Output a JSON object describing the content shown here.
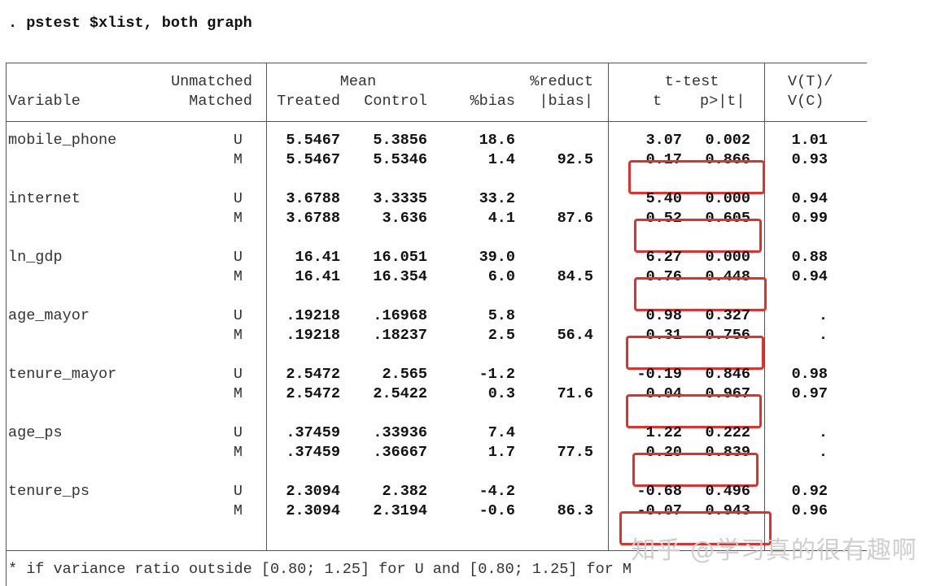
{
  "command": ". pstest $xlist, both graph",
  "header": {
    "unmatched": "Unmatched",
    "matched": "Matched",
    "variable": "Variable",
    "mean": "Mean",
    "treated": "Treated",
    "control": "Control",
    "bias": "%bias",
    "reduct1": "%reduct",
    "reduct2": "|bias|",
    "ttest": "t-test",
    "t": "t",
    "p": "p>|t|",
    "vt": "V(T)/",
    "vc": "V(C)"
  },
  "rows": [
    {
      "variable": "mobile_phone",
      "U": {
        "flag": "U",
        "treated": "5.5467",
        "control": "5.3856",
        "bias": "18.6",
        "reduct": "",
        "t": "3.07",
        "p": "0.002",
        "vr": "1.01"
      },
      "M": {
        "flag": "M",
        "treated": "5.5467",
        "control": "5.5346",
        "bias": "1.4",
        "reduct": "92.5",
        "t": "0.17",
        "p": "0.866",
        "vr": "0.93"
      }
    },
    {
      "variable": "internet",
      "U": {
        "flag": "U",
        "treated": "3.6788",
        "control": "3.3335",
        "bias": "33.2",
        "reduct": "",
        "t": "5.40",
        "p": "0.000",
        "vr": "0.94"
      },
      "M": {
        "flag": "M",
        "treated": "3.6788",
        "control": "3.636",
        "bias": "4.1",
        "reduct": "87.6",
        "t": "0.52",
        "p": "0.605",
        "vr": "0.99"
      }
    },
    {
      "variable": "ln_gdp",
      "U": {
        "flag": "U",
        "treated": "16.41",
        "control": "16.051",
        "bias": "39.0",
        "reduct": "",
        "t": "6.27",
        "p": "0.000",
        "vr": "0.88"
      },
      "M": {
        "flag": "M",
        "treated": "16.41",
        "control": "16.354",
        "bias": "6.0",
        "reduct": "84.5",
        "t": "0.76",
        "p": "0.448",
        "vr": "0.94"
      }
    },
    {
      "variable": "age_mayor",
      "U": {
        "flag": "U",
        "treated": ".19218",
        "control": ".16968",
        "bias": "5.8",
        "reduct": "",
        "t": "0.98",
        "p": "0.327",
        "vr": "."
      },
      "M": {
        "flag": "M",
        "treated": ".19218",
        "control": ".18237",
        "bias": "2.5",
        "reduct": "56.4",
        "t": "0.31",
        "p": "0.756",
        "vr": "."
      }
    },
    {
      "variable": "tenure_mayor",
      "U": {
        "flag": "U",
        "treated": "2.5472",
        "control": "2.565",
        "bias": "-1.2",
        "reduct": "",
        "t": "-0.19",
        "p": "0.846",
        "vr": "0.98"
      },
      "M": {
        "flag": "M",
        "treated": "2.5472",
        "control": "2.5422",
        "bias": "0.3",
        "reduct": "71.6",
        "t": "0.04",
        "p": "0.967",
        "vr": "0.97"
      }
    },
    {
      "variable": "age_ps",
      "U": {
        "flag": "U",
        "treated": ".37459",
        "control": ".33936",
        "bias": "7.4",
        "reduct": "",
        "t": "1.22",
        "p": "0.222",
        "vr": "."
      },
      "M": {
        "flag": "M",
        "treated": ".37459",
        "control": ".36667",
        "bias": "1.7",
        "reduct": "77.5",
        "t": "0.20",
        "p": "0.839",
        "vr": "."
      }
    },
    {
      "variable": "tenure_ps",
      "U": {
        "flag": "U",
        "treated": "2.3094",
        "control": "2.382",
        "bias": "-4.2",
        "reduct": "",
        "t": "-0.68",
        "p": "0.496",
        "vr": "0.92"
      },
      "M": {
        "flag": "M",
        "treated": "2.3094",
        "control": "2.3194",
        "bias": "-0.6",
        "reduct": "86.3",
        "t": "-0.07",
        "p": "0.943",
        "vr": "0.96"
      }
    }
  ],
  "footnote": "* if variance ratio outside [0.80; 1.25] for U and [0.80; 1.25] for M",
  "watermark": "知乎 @学习真的很有趣啊",
  "highlight_color": "#e0322b"
}
